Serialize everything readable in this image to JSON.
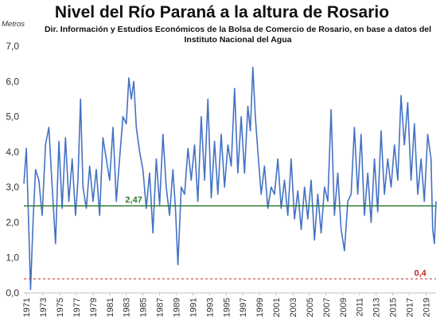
{
  "chart_data": {
    "type": "line",
    "title": "Nivel del Río Paraná a la altura de Rosario",
    "subtitle_lines": [
      "Dir. Información y Estudios Económicos de la Bolsa de Comercio de Rosario, en base a datos del",
      "Instituto Nacional del Agua"
    ],
    "ylabel": "Metros",
    "xlabel": "",
    "ylim": [
      0,
      7
    ],
    "xlim": [
      1970.7,
      2020.2
    ],
    "yticks": [
      "0,0",
      "1,0",
      "2,0",
      "3,0",
      "4,0",
      "5,0",
      "6,0",
      "7,0"
    ],
    "xticks": [
      "1971",
      "1973",
      "1975",
      "1977",
      "1979",
      "1981",
      "1983",
      "1985",
      "1987",
      "1989",
      "1991",
      "1993",
      "1995",
      "1997",
      "1999",
      "2001",
      "2003",
      "2005",
      "2007",
      "2009",
      "2011",
      "2013",
      "2015",
      "2017",
      "2019"
    ],
    "grid": false,
    "line_color": "#4472c4",
    "series": [
      {
        "x": [
          1970.7,
          1971.0,
          1971.2,
          1971.5,
          1971.8,
          1972.1,
          1972.5,
          1972.9,
          1973.3,
          1973.7,
          1974.1,
          1974.5,
          1974.9,
          1975.3,
          1975.7,
          1976.1,
          1976.5,
          1976.9,
          1977.2,
          1977.5,
          1977.8,
          1978.2,
          1978.6,
          1979.0,
          1979.4,
          1979.8,
          1980.2,
          1980.6,
          1981.0,
          1981.4,
          1981.8,
          1982.2,
          1982.6,
          1983.0,
          1983.3,
          1983.6,
          1983.9,
          1984.2,
          1984.6,
          1985.0,
          1985.4,
          1985.8,
          1986.2,
          1986.6,
          1987.0,
          1987.4,
          1987.8,
          1988.2,
          1988.6,
          1988.9,
          1989.2,
          1989.6,
          1990.0,
          1990.4,
          1990.8,
          1991.2,
          1991.6,
          1992.0,
          1992.4,
          1992.8,
          1993.2,
          1993.6,
          1994.0,
          1994.4,
          1994.8,
          1995.2,
          1995.6,
          1996.0,
          1996.4,
          1996.8,
          1997.2,
          1997.6,
          1997.9,
          1998.2,
          1998.5,
          1998.8,
          1999.2,
          1999.6,
          2000.0,
          2000.4,
          2000.8,
          2001.2,
          2001.6,
          2002.0,
          2002.4,
          2002.8,
          2003.2,
          2003.6,
          2004.0,
          2004.4,
          2004.8,
          2005.2,
          2005.6,
          2006.0,
          2006.4,
          2006.8,
          2007.2,
          2007.6,
          2008.0,
          2008.4,
          2008.8,
          2009.2,
          2009.6,
          2010.0,
          2010.4,
          2010.8,
          2011.2,
          2011.6,
          2012.0,
          2012.4,
          2012.8,
          2013.2,
          2013.6,
          2014.0,
          2014.4,
          2014.8,
          2015.2,
          2015.6,
          2016.0,
          2016.4,
          2016.8,
          2017.2,
          2017.6,
          2018.0,
          2018.4,
          2018.8,
          2019.2,
          2019.6,
          2019.8,
          2020.0,
          2020.2
        ],
        "y": [
          3.1,
          4.1,
          2.6,
          0.1,
          2.0,
          3.5,
          3.2,
          2.2,
          4.2,
          4.7,
          3.0,
          1.4,
          4.3,
          2.4,
          4.4,
          2.6,
          3.8,
          2.2,
          3.2,
          5.5,
          3.0,
          2.4,
          3.6,
          2.6,
          3.5,
          2.2,
          4.4,
          3.8,
          3.2,
          4.7,
          2.6,
          3.8,
          5.0,
          4.8,
          6.1,
          5.5,
          6.0,
          4.7,
          4.0,
          3.5,
          2.4,
          3.4,
          1.7,
          3.8,
          2.5,
          4.5,
          3.0,
          2.2,
          3.5,
          2.4,
          0.8,
          3.0,
          2.8,
          4.1,
          3.2,
          4.2,
          2.6,
          5.0,
          3.2,
          5.5,
          2.7,
          4.3,
          2.8,
          4.5,
          3.0,
          4.2,
          3.6,
          5.8,
          3.4,
          5.0,
          3.4,
          5.3,
          4.6,
          6.4,
          5.0,
          4.0,
          2.8,
          3.6,
          2.4,
          3.0,
          2.8,
          3.8,
          2.4,
          3.2,
          2.2,
          3.8,
          2.1,
          2.9,
          1.8,
          3.0,
          2.1,
          3.2,
          1.5,
          2.8,
          1.7,
          3.0,
          2.6,
          5.2,
          2.2,
          3.4,
          1.8,
          1.2,
          2.6,
          2.8,
          4.7,
          2.8,
          4.5,
          2.2,
          3.4,
          2.0,
          3.8,
          2.3,
          4.6,
          2.8,
          3.8,
          3.0,
          4.2,
          3.2,
          5.6,
          4.2,
          5.4,
          3.2,
          4.8,
          2.8,
          3.8,
          2.6,
          4.5,
          3.8,
          1.8,
          1.4,
          2.6
        ]
      }
    ],
    "annotations": [
      {
        "label": "2,47",
        "y": 2.47,
        "color": "#2e7d32",
        "line_style": "solid",
        "label_x": 1983.9
      },
      {
        "label": "0,4",
        "y": 0.4,
        "color": "#c62828",
        "line_style": "dashed",
        "label_x": 2018.3
      }
    ]
  }
}
